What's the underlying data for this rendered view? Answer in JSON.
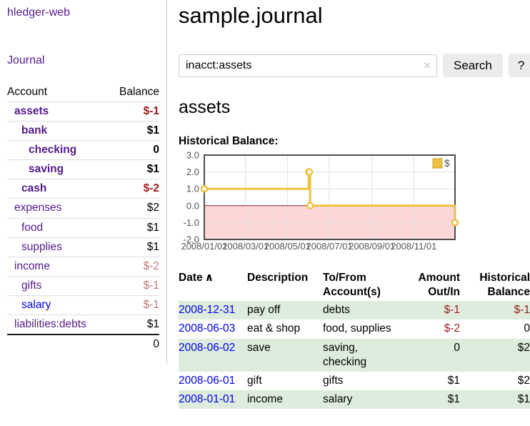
{
  "theme": {
    "link_purple": "#551A8B",
    "link_blue": "#0000EE",
    "negative_red": "#9e1a1a",
    "negative_faded": "#c07878",
    "row_stripe_green": "#ddecdd",
    "chart_line_gold": "#edc240",
    "chart_legend_box_border": "#c5a02e",
    "chart_negative_fill": "#fbd7d7",
    "chart_zero_line": "#8b1a1a",
    "chart_border": "#4d4d4d",
    "chart_grid": "#e0e0e0",
    "chart_tick_text": "#545454"
  },
  "app": {
    "title": "hledger-web"
  },
  "sidebar": {
    "journal_label": "Journal",
    "accounts_table": {
      "headers": {
        "account": "Account",
        "balance": "Balance"
      },
      "rows": [
        {
          "name": "assets",
          "balance": "$-1",
          "depth": 0,
          "bold": true
        },
        {
          "name": "bank",
          "balance": "$1",
          "depth": 1,
          "bold": true
        },
        {
          "name": "checking",
          "balance": "0",
          "depth": 2,
          "bold": true
        },
        {
          "name": "saving",
          "balance": "$1",
          "depth": 2,
          "bold": true
        },
        {
          "name": "cash",
          "balance": "$-2",
          "depth": 1,
          "bold": true
        },
        {
          "name": "expenses",
          "balance": "$2",
          "depth": 0
        },
        {
          "name": "food",
          "balance": "$1",
          "depth": 1
        },
        {
          "name": "supplies",
          "balance": "$1",
          "depth": 1
        },
        {
          "name": "income",
          "balance": "$-2",
          "depth": 0,
          "faded": true
        },
        {
          "name": "gifts",
          "balance": "$-1",
          "depth": 1,
          "faded": true
        },
        {
          "name": "salary",
          "balance": "$-1",
          "depth": 1,
          "faded": true,
          "unvisited": true
        },
        {
          "name": "liabilities:debts",
          "balance": "$1",
          "depth": 0
        }
      ],
      "total": "0"
    }
  },
  "main": {
    "title": "sample.journal",
    "search": {
      "value": "inacct:assets",
      "clear_icon": "×",
      "button_label": "Search",
      "help_label": "?"
    },
    "account_heading": "assets"
  },
  "chart_data": {
    "type": "line",
    "title": "Historical Balance:",
    "x_type": "date",
    "xlim": [
      "2008-01-01",
      "2008-12-31"
    ],
    "ylim": [
      -2.0,
      3.0
    ],
    "yticks": [
      "3.0",
      "2.0",
      "1.0",
      "0.0",
      "-1.0",
      "-2.0"
    ],
    "xticks": [
      {
        "date": "2008-01-01",
        "label": "2008/01/01"
      },
      {
        "date": "2008-03-01",
        "label": "2008/03/01"
      },
      {
        "date": "2008-05-01",
        "label": "2008/05/01"
      },
      {
        "date": "2008-07-01",
        "label": "2008/07/01"
      },
      {
        "date": "2008-09-01",
        "label": "2008/09/01"
      },
      {
        "date": "2008-11-01",
        "label": "2008/11/01"
      }
    ],
    "series": [
      {
        "name": "$",
        "step": true,
        "points": [
          {
            "x": "2008-01-01",
            "y": 1
          },
          {
            "x": "2008-06-01",
            "y": 2
          },
          {
            "x": "2008-06-02",
            "y": 2
          },
          {
            "x": "2008-06-03",
            "y": 0
          },
          {
            "x": "2008-12-31",
            "y": -1
          }
        ]
      }
    ],
    "legend": {
      "position": "top-right",
      "entries": [
        "$"
      ]
    },
    "grid": true,
    "negative_region_shaded": true
  },
  "register_table": {
    "headers": {
      "date": "Date",
      "sort_icon": "∧",
      "description": "Description",
      "accounts": "To/From Account(s)",
      "amount": "Amount Out/In",
      "balance": "Historical Balance"
    },
    "rows": [
      {
        "date": "2008-12-31",
        "description": "pay off",
        "accounts": "debts",
        "amount": "$-1",
        "balance": "$-1"
      },
      {
        "date": "2008-06-03",
        "description": "eat & shop",
        "accounts": "food, supplies",
        "amount": "$-2",
        "balance": "0"
      },
      {
        "date": "2008-06-02",
        "description": "save",
        "accounts": "saving, checking",
        "amount": "0",
        "balance": "$2"
      },
      {
        "date": "2008-06-01",
        "description": "gift",
        "accounts": "gifts",
        "amount": "$1",
        "balance": "$2"
      },
      {
        "date": "2008-01-01",
        "description": "income",
        "accounts": "salary",
        "amount": "$1",
        "balance": "$1"
      }
    ]
  }
}
